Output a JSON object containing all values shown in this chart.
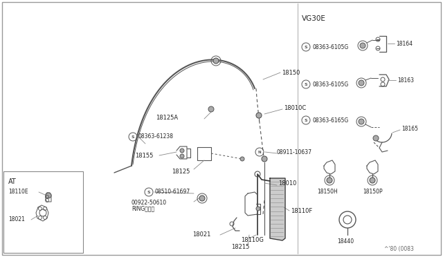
{
  "bg_color": "#ffffff",
  "border_color": "#888888",
  "line_color": "#555555",
  "fig_code": "^'80 (0083",
  "vg30e_label": "VG30E",
  "at_label": "AT"
}
